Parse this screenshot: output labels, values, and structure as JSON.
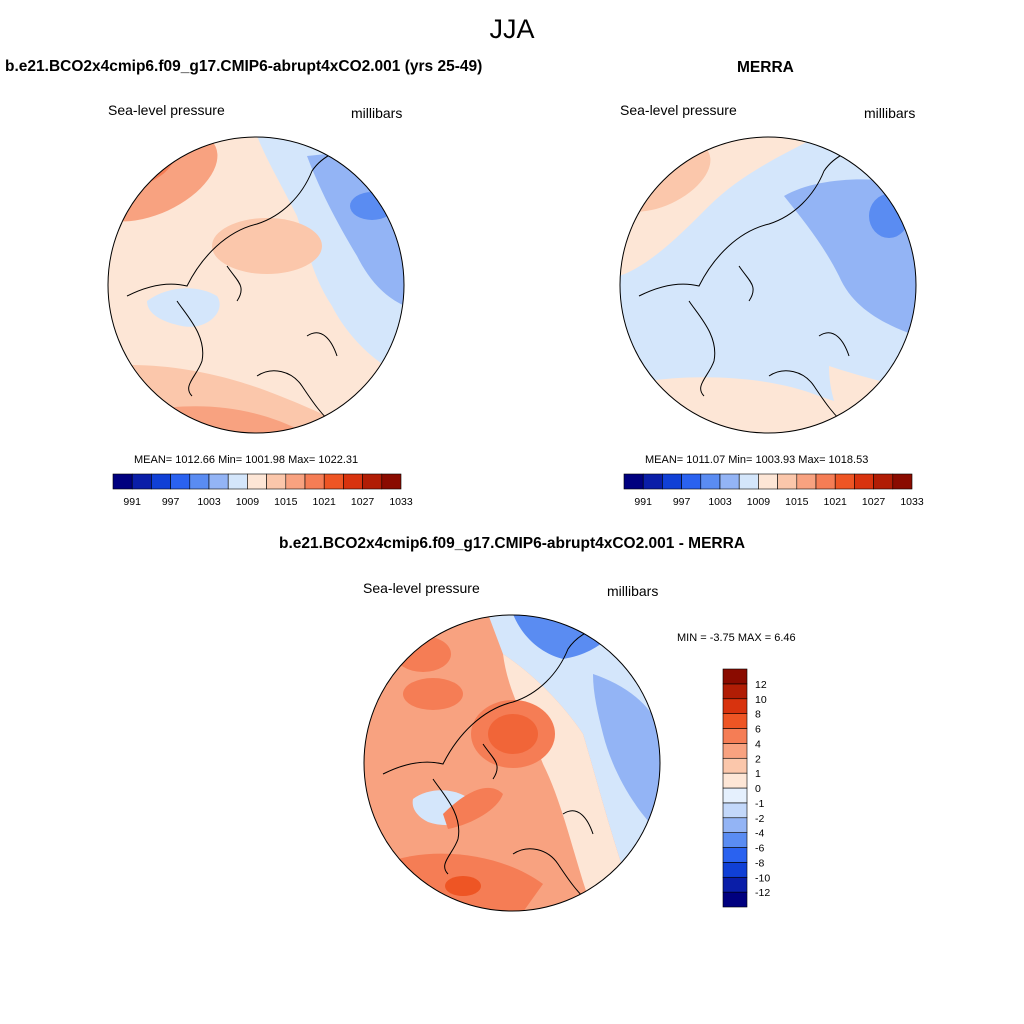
{
  "figure": {
    "season": "JJA"
  },
  "panels": {
    "model": {
      "title": "b.e21.BCO2x4cmip6.f09_g17.CMIP6-abrupt4xCO2.001 (yrs 25-49)",
      "variable": "Sea-level pressure",
      "units": "millibars",
      "stats": "MEAN= 1012.66  Min= 1001.98  Max= 1022.31"
    },
    "obs": {
      "title": "MERRA",
      "variable": "Sea-level pressure",
      "units": "millibars",
      "stats": "MEAN= 1011.07  Min= 1003.93  Max= 1018.53"
    },
    "diff": {
      "title": "b.e21.BCO2x4cmip6.f09_g17.CMIP6-abrupt4xCO2.001 - MERRA",
      "variable": "Sea-level pressure",
      "units": "millibars",
      "stats": "MIN =  -3.75 MAX =   6.46"
    }
  },
  "colorbars": {
    "absolute": {
      "colors": [
        "#00007f",
        "#0a1ea8",
        "#1040d6",
        "#2a62f0",
        "#5a8cf2",
        "#93b4f5",
        "#d4e6fb",
        "#fde6d6",
        "#fbc7ab",
        "#f8a280",
        "#f57d55",
        "#ee5524",
        "#d8330e",
        "#b11d05",
        "#8a0b00"
      ],
      "tick_labels": [
        "991",
        "997",
        "1003",
        "1009",
        "1015",
        "1021",
        "1027",
        "1033"
      ]
    },
    "difference": {
      "colors": [
        "#00007f",
        "#0a1ea8",
        "#1040d6",
        "#2a62f0",
        "#5a8cf2",
        "#93b4f5",
        "#c3d8fa",
        "#e5f0fd",
        "#fde6d6",
        "#fbc7ab",
        "#f8a280",
        "#f57d55",
        "#ee5524",
        "#d8330e",
        "#b11d05",
        "#8a0b00"
      ],
      "tick_labels": [
        "12",
        "10",
        "8",
        "6",
        "4",
        "2",
        "1",
        "0",
        "-1",
        "-2",
        "-4",
        "-6",
        "-8",
        "-10",
        "-12"
      ]
    }
  },
  "map_colors": {
    "base_warm": "#fde6d6",
    "base_cool": "#d4e6fb",
    "mid_blue": "#93b4f5",
    "blue": "#5a8cf2",
    "light_red": "#fbc7ab",
    "red": "#f8a280",
    "strong_red": "#f57d55",
    "land_line": "#000000"
  }
}
